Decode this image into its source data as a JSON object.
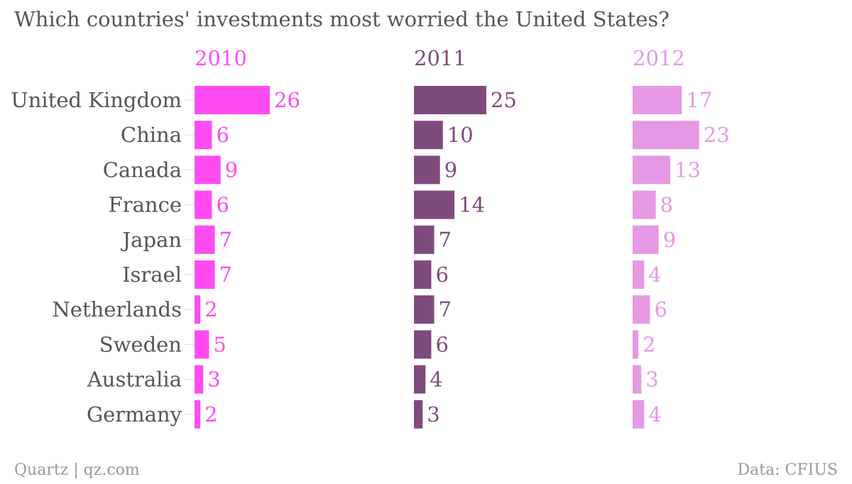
{
  "title": "Which countries' investments most worried the United States?",
  "footer": {
    "left": "Quartz | qz.com",
    "right": "Data: CFIUS"
  },
  "colors": {
    "2010": "#ff4cf2",
    "2011": "#7f4b7d",
    "2012": "#e599e5",
    "text": "#555555",
    "footer": "#999999"
  },
  "chart_data": {
    "type": "bar",
    "orientation": "horizontal",
    "title": "Which countries' investments most worried the United States?",
    "categories": [
      "United Kingdom",
      "China",
      "Canada",
      "France",
      "Japan",
      "Israel",
      "Netherlands",
      "Sweden",
      "Australia",
      "Germany"
    ],
    "series": [
      {
        "name": "2010",
        "values": [
          26,
          6,
          9,
          6,
          7,
          7,
          2,
          5,
          3,
          2
        ]
      },
      {
        "name": "2011",
        "values": [
          25,
          10,
          9,
          14,
          7,
          6,
          7,
          6,
          4,
          3
        ]
      },
      {
        "name": "2012",
        "values": [
          17,
          23,
          13,
          8,
          9,
          4,
          6,
          2,
          3,
          4
        ]
      }
    ],
    "xlim": [
      0,
      26
    ],
    "grid": false,
    "legend": "none"
  }
}
